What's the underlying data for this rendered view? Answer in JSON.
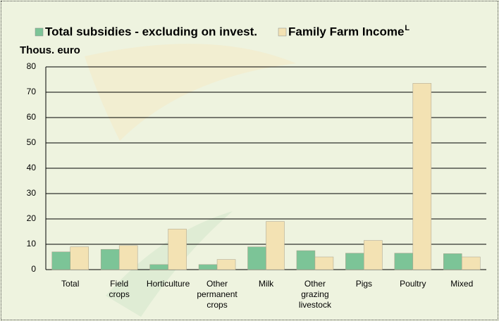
{
  "chart_data": {
    "type": "bar",
    "y_label": "Thous. euro",
    "categories": [
      "Total",
      "Field crops",
      "Horticulture",
      "Other permanent crops",
      "Milk",
      "Other grazing livestock",
      "Pigs",
      "Poultry",
      "Mixed"
    ],
    "series": [
      {
        "name": "Total subsidies - excluding on invest.",
        "color": "#7cc497",
        "values": [
          7,
          8,
          2,
          2,
          9,
          7.5,
          6.5,
          6.5,
          6.3
        ]
      },
      {
        "name": "Family Farm Income",
        "name_note": "L",
        "color": "#f3e2b3",
        "values": [
          9,
          9.5,
          16,
          4,
          19,
          5,
          11.5,
          73.5,
          5
        ]
      }
    ],
    "ylim": [
      0,
      80
    ],
    "yticks": [
      0,
      10,
      20,
      30,
      40,
      50,
      60,
      70,
      80
    ],
    "grid": true
  }
}
